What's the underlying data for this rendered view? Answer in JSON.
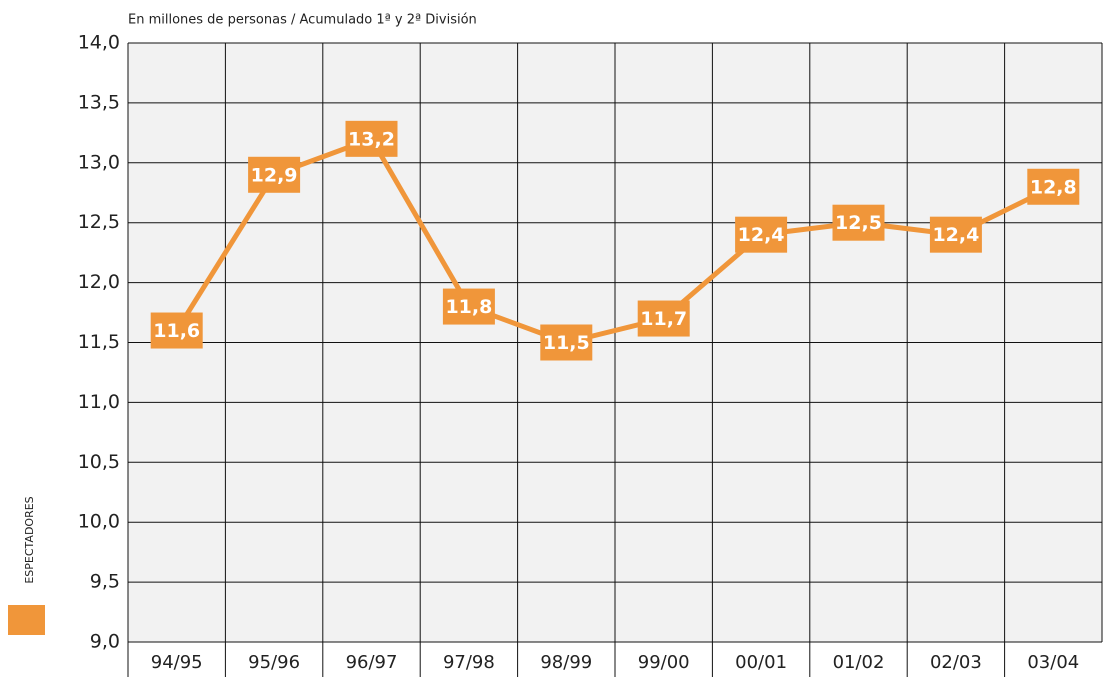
{
  "chart_data": {
    "type": "line",
    "subtitle": "En millones de personas / Acumulado 1ª y 2ª División",
    "categories": [
      "94/95",
      "95/96",
      "96/97",
      "97/98",
      "98/99",
      "99/00",
      "00/01",
      "01/02",
      "02/03",
      "03/04"
    ],
    "series": [
      {
        "name": "ESPECTADORES",
        "color": "#f0963a",
        "values": [
          11.6,
          12.9,
          13.2,
          11.8,
          11.5,
          11.7,
          12.4,
          12.5,
          12.4,
          12.8
        ],
        "value_labels": [
          "11,6",
          "12,9",
          "13,2",
          "11,8",
          "11,5",
          "11,7",
          "12,4",
          "12,5",
          "12,4",
          "12,8"
        ]
      }
    ],
    "ylim": [
      9,
      14
    ],
    "yticks": [
      {
        "value": 9,
        "label": "9,0"
      },
      {
        "value": 9.5,
        "label": "9,5"
      },
      {
        "value": 10,
        "label": "10,0"
      },
      {
        "value": 10.5,
        "label": "10,5"
      },
      {
        "value": 11,
        "label": "11,0"
      },
      {
        "value": 11.5,
        "label": "11,5"
      },
      {
        "value": 12,
        "label": "12,0"
      },
      {
        "value": 12.5,
        "label": "12,5"
      },
      {
        "value": 13,
        "label": "13,0"
      },
      {
        "value": 13.5,
        "label": "13,5"
      },
      {
        "value": 14,
        "label": "14,0"
      }
    ],
    "grid": true
  }
}
